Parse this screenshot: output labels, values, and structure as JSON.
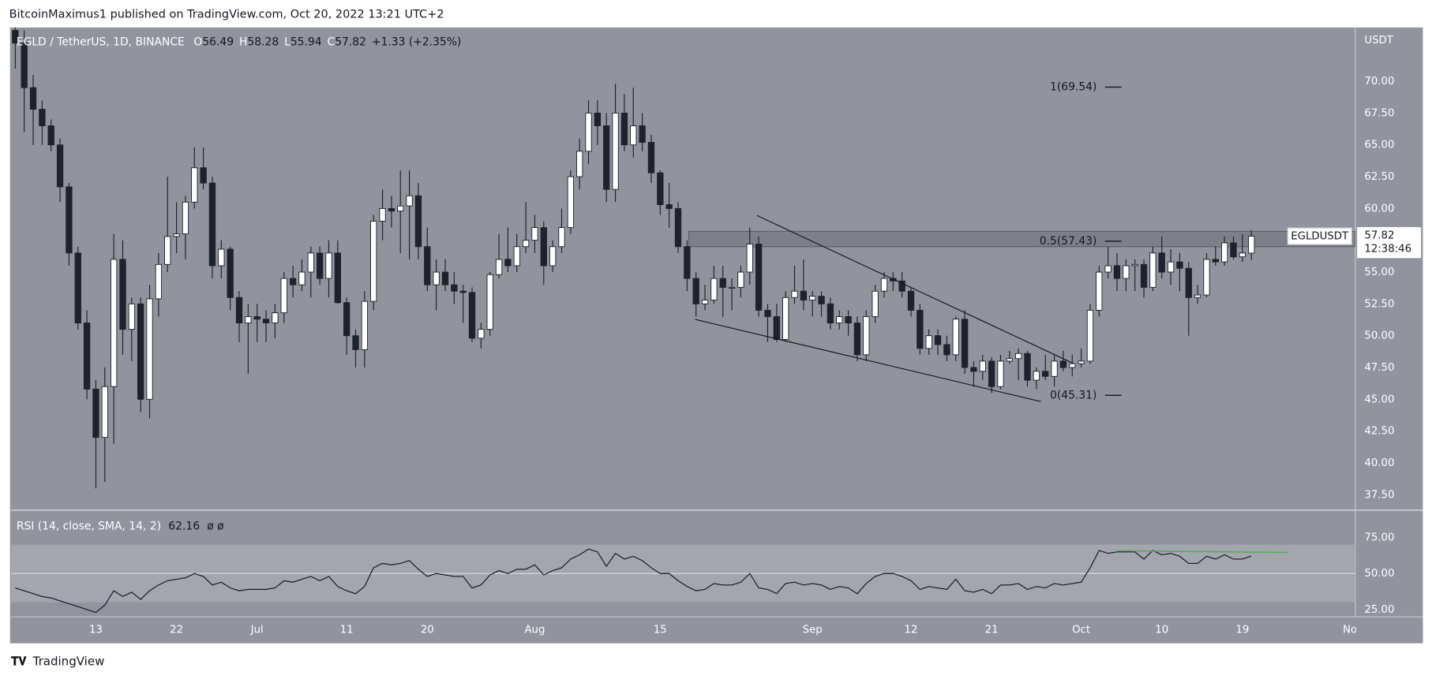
{
  "header": "BitcoinMaximus1 published on TradingView.com, Oct 20, 2022 13:21 UTC+2",
  "footer": "TradingView",
  "chart_data": [
    {
      "type": "candlestick",
      "title": "EGLD / TetherUS, 1D, BINANCE",
      "legend_keys": [
        "O",
        "H",
        "L",
        "C"
      ],
      "change": "+1.33 (+2.35%)",
      "axis_unit": "USDT",
      "symbol_tag": "EGLDUSDT",
      "countdown": "12:38:46",
      "up_color": "#ffffff",
      "down_color": "#1e222d",
      "wick_color": "#1e222d",
      "open": [
        74,
        73,
        69.5,
        67.8,
        66.5,
        65,
        61.7,
        56.5,
        51,
        45.8,
        42,
        46,
        56,
        50.5,
        52.5,
        45,
        52.9,
        55.6,
        57.8,
        58,
        60.5,
        63.2,
        62,
        55.5,
        56.8,
        53,
        51,
        51.5,
        51.3,
        51,
        51.8,
        54.5,
        54,
        55,
        56.5,
        54.5,
        56.5,
        52.6,
        50,
        48.9,
        52.7,
        59,
        60,
        59.8,
        60.2,
        61,
        57,
        54,
        55,
        54,
        53.5,
        53.4,
        49.8,
        50.5,
        54.8,
        56,
        55.5,
        57,
        57.5,
        58.5,
        55.5,
        57,
        58.5,
        62.5,
        64.5,
        67.5,
        66.5,
        61.5,
        67.5,
        65,
        66.5,
        65.2,
        62.8,
        60.3,
        60,
        57,
        54.5,
        52.5,
        52.8,
        54.5,
        53.8,
        53.8,
        55,
        57.2,
        52,
        51.5,
        49.7,
        53,
        53.5,
        52.8,
        53.1,
        52.5,
        51,
        51.5,
        51,
        48.5,
        51.5,
        53.5,
        54.5,
        54.3,
        53.5,
        52,
        49,
        50,
        49.3,
        48.5,
        51.3,
        47.5,
        47.2,
        48,
        46,
        48,
        48.2,
        48.6,
        46.5,
        47.2,
        46.8,
        48,
        47.5,
        47.8,
        48,
        52,
        55,
        55.5,
        54.5,
        55.5,
        55.6,
        53.8,
        56.5,
        55,
        55.8,
        55.3,
        53,
        53.2,
        56,
        55.8,
        57.3,
        56.2,
        56.49
      ],
      "high": [
        75,
        74,
        70.5,
        68.5,
        67,
        65.5,
        62,
        57,
        52,
        46.5,
        47.5,
        58,
        57.5,
        53,
        53,
        54,
        56.5,
        62.5,
        60.5,
        61,
        64.8,
        64.8,
        62.5,
        57.5,
        57,
        53.5,
        52.5,
        52.5,
        52,
        52.5,
        55,
        55.5,
        56,
        57,
        57,
        57.5,
        57.5,
        53,
        50.5,
        53.5,
        59.5,
        61.5,
        61,
        63,
        63,
        62,
        58.5,
        56,
        56,
        55,
        54,
        53.8,
        51,
        55,
        58,
        58.5,
        58,
        60.5,
        59.5,
        59,
        57.5,
        60,
        63,
        65.5,
        68.5,
        68.5,
        67.5,
        69.8,
        69,
        69.5,
        67.5,
        65.8,
        63,
        62,
        60.5,
        57.5,
        55,
        54,
        55.5,
        55.5,
        54.5,
        55.5,
        58.5,
        57.8,
        52.5,
        52.5,
        53.5,
        55.5,
        56,
        53.5,
        53.5,
        53,
        52,
        52,
        51.5,
        52,
        54,
        55,
        55,
        55,
        53.8,
        52.5,
        50.5,
        50.5,
        50,
        51.5,
        52,
        48,
        48.5,
        48.3,
        48.5,
        48.8,
        49,
        48.8,
        47.5,
        48.5,
        48.5,
        48.8,
        48.5,
        49,
        52.5,
        55.5,
        57,
        56.5,
        56,
        56,
        56,
        57,
        57.8,
        56.8,
        56.5,
        55.8,
        54,
        56.5,
        57,
        57.8,
        57.8,
        58,
        58.28
      ],
      "low": [
        71,
        66,
        65,
        65,
        64.5,
        60.5,
        55.5,
        50.5,
        45,
        38,
        38.5,
        41.5,
        48.5,
        48,
        44,
        43.5,
        51.5,
        55,
        56.5,
        56,
        60,
        61.5,
        54.5,
        54.5,
        52,
        49.5,
        47,
        49.5,
        49.5,
        49.8,
        51,
        53,
        53.5,
        53,
        54,
        53,
        52.5,
        48.5,
        47.5,
        47.5,
        52,
        57.5,
        58.5,
        56.5,
        56,
        56,
        53.5,
        52,
        53.5,
        52.5,
        51,
        49.5,
        49,
        50,
        54.5,
        55,
        55,
        56.5,
        56.5,
        54,
        55,
        56.5,
        58,
        61.5,
        63.5,
        65,
        60.5,
        60.5,
        64.5,
        64,
        64.5,
        62,
        59.5,
        58.5,
        56.5,
        53.5,
        51.5,
        52,
        52.5,
        51.5,
        52,
        53,
        54,
        51.5,
        49.5,
        49.5,
        49.5,
        52.5,
        52,
        51.5,
        51.5,
        50.5,
        50.5,
        50,
        48,
        48,
        51,
        53,
        53.5,
        53,
        51.5,
        48.5,
        48.5,
        48.5,
        48,
        48,
        47,
        46,
        46.5,
        45.5,
        45.8,
        47.8,
        46.5,
        46,
        45.8,
        46.5,
        46,
        47.2,
        46.8,
        47.5,
        47.8,
        51.5,
        54.5,
        53.5,
        53.5,
        53.5,
        53,
        53.5,
        54.5,
        54,
        53.5,
        50,
        52.5,
        53,
        55.5,
        55.5,
        56,
        55.8,
        55.94
      ],
      "close": [
        73,
        69.5,
        67.8,
        66.5,
        65,
        61.7,
        56.5,
        51,
        45.8,
        42,
        46,
        56,
        50.5,
        52.5,
        45,
        52.9,
        55.6,
        57.8,
        58,
        60.5,
        63.2,
        62,
        55.5,
        56.8,
        53,
        51,
        51.5,
        51.3,
        51,
        51.8,
        54.5,
        54,
        55,
        56.5,
        54.5,
        56.5,
        52.6,
        50,
        48.9,
        52.7,
        59,
        60,
        59.8,
        60.2,
        61,
        57,
        54,
        55,
        54,
        53.5,
        53.4,
        49.8,
        50.5,
        54.8,
        56,
        55.5,
        57,
        57.5,
        58.5,
        55.5,
        57,
        58.5,
        62.5,
        64.5,
        67.5,
        66.5,
        61.5,
        67.5,
        65,
        66.5,
        65.2,
        62.8,
        60.3,
        60,
        57,
        54.5,
        52.5,
        52.8,
        54.5,
        53.8,
        53.8,
        55,
        57.2,
        52,
        51.5,
        49.7,
        53,
        53.5,
        52.8,
        53.1,
        52.5,
        51,
        51.5,
        51,
        48.5,
        51.5,
        53.5,
        54.5,
        54.3,
        53.5,
        52,
        49,
        50,
        49.3,
        48.5,
        51.3,
        47.5,
        47.2,
        48,
        46,
        48,
        48.2,
        48.6,
        46.5,
        47.2,
        46.8,
        48,
        47.5,
        47.8,
        48,
        52,
        55,
        55.5,
        54.5,
        55.5,
        55.6,
        53.8,
        56.5,
        55,
        55.8,
        55.3,
        53,
        53.2,
        56,
        55.8,
        57.3,
        56.2,
        56.5,
        57.82
      ],
      "xlim": [
        -0.48,
        149.6
      ],
      "xticks": [
        {
          "value": 9,
          "label": "13"
        },
        {
          "value": 18,
          "label": "22"
        },
        {
          "value": 27,
          "label": "Jul"
        },
        {
          "value": 37,
          "label": "11"
        },
        {
          "value": 46,
          "label": "20"
        },
        {
          "value": 58,
          "label": "Aug"
        },
        {
          "value": 72,
          "label": "15"
        },
        {
          "value": 89,
          "label": "Sep"
        },
        {
          "value": 100,
          "label": "12"
        },
        {
          "value": 109,
          "label": "21"
        },
        {
          "value": 119,
          "label": "Oct"
        },
        {
          "value": 128,
          "label": "10"
        },
        {
          "value": 137,
          "label": "19"
        },
        {
          "value": 149,
          "label": "No"
        }
      ],
      "ylim": [
        36.36,
        74.23
      ],
      "yticks": [
        {
          "value": 37.5,
          "label": "37.50"
        },
        {
          "value": 40,
          "label": "40.00"
        },
        {
          "value": 42.5,
          "label": "42.50"
        },
        {
          "value": 45,
          "label": "45.00"
        },
        {
          "value": 47.5,
          "label": "47.50"
        },
        {
          "value": 50,
          "label": "50.00"
        },
        {
          "value": 52.5,
          "label": "52.50"
        },
        {
          "value": 55,
          "label": "55.00"
        },
        {
          "value": 57.5,
          "label": "57.50"
        },
        {
          "value": 60,
          "label": "60.00"
        },
        {
          "value": 62.5,
          "label": "62.50"
        },
        {
          "value": 65,
          "label": "65.00"
        },
        {
          "value": 67.5,
          "label": "67.50"
        },
        {
          "value": 70,
          "label": "70.00"
        }
      ],
      "fib_levels": [
        {
          "value": 69.54,
          "label": "1(69.54)"
        },
        {
          "value": 57.43,
          "label": "0.5(57.43)"
        },
        {
          "value": 45.31,
          "label": "0(45.31)"
        }
      ],
      "zone": {
        "start": 75.2,
        "low": 57.0,
        "high": 58.2
      },
      "trendlines": [
        [
          [
            82.8,
            59.45
          ],
          [
            118.1,
            47.83
          ]
        ],
        [
          [
            75.9,
            51.28
          ],
          [
            114.5,
            44.82
          ]
        ]
      ]
    },
    {
      "type": "line",
      "title": "RSI (14, close, SMA, 14, 2)",
      "extra": "ø ø",
      "color": "#131722",
      "values": [
        40,
        38,
        36,
        34,
        33,
        31,
        29,
        27,
        25,
        23,
        28,
        38,
        34,
        37,
        32,
        38,
        42,
        45,
        46,
        47,
        50,
        48,
        42,
        44,
        40,
        38,
        39,
        39,
        39,
        40,
        45,
        44,
        46,
        48,
        45,
        48,
        41,
        38,
        36,
        41,
        54,
        57,
        56,
        57,
        59,
        53,
        48,
        50,
        49,
        48,
        48,
        40,
        42,
        49,
        52,
        50,
        53,
        53,
        56,
        49,
        52,
        54,
        60,
        63,
        67,
        65,
        55,
        64,
        60,
        62,
        59,
        54,
        50,
        50,
        45,
        41,
        38,
        39,
        43,
        42,
        42,
        44,
        50,
        40,
        39,
        36,
        43,
        44,
        42,
        43,
        42,
        39,
        41,
        40,
        36,
        43,
        48,
        50,
        50,
        48,
        45,
        39,
        41,
        40,
        39,
        46,
        38,
        37,
        39,
        36,
        42,
        42,
        43,
        39,
        41,
        40,
        43,
        42,
        43,
        44,
        54,
        66,
        64,
        65,
        65,
        65,
        60,
        66,
        63,
        64,
        62,
        57,
        57,
        62,
        60,
        63,
        60,
        60,
        62.16
      ],
      "ylim": [
        19.9,
        93.4
      ],
      "yticks": [
        {
          "value": 25,
          "label": "25.00"
        },
        {
          "value": 50,
          "label": "50.00"
        },
        {
          "value": 75,
          "label": "75.00"
        }
      ],
      "band": [
        30,
        70
      ],
      "resistance_line": {
        "color": "#4caf50",
        "points": [
          [
            123,
            65.8
          ],
          [
            142.1,
            64.6
          ]
        ]
      }
    }
  ]
}
